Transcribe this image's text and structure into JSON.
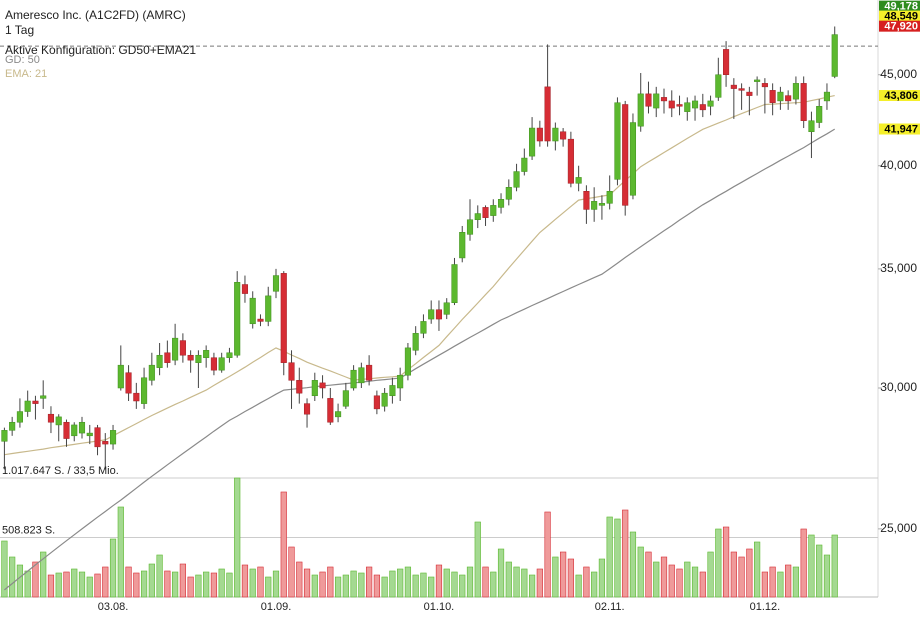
{
  "chart_data": {
    "type": "candlestick",
    "title": "Ameresco Inc. (A1C2FD) (AMRC)",
    "subtitle": "1 Tag",
    "config_label": "Aktive Konfiguration: GD50+EMA21",
    "log_scale": true,
    "up_color": "#5cb82f",
    "down_color": "#d62d35",
    "wick_color": "#444444",
    "ylim": [
      22890,
      49570
    ],
    "yticks": [
      {
        "value": 25000,
        "label": "25,000"
      },
      {
        "value": 30000,
        "label": "30,000"
      },
      {
        "value": 35000,
        "label": "35,000"
      },
      {
        "value": 40000,
        "label": "40,000"
      },
      {
        "value": 45000,
        "label": "45,000"
      }
    ],
    "reference_line": 46700,
    "price_markers": [
      {
        "value": 49178,
        "label": "49,178",
        "color": "#2e8b1e",
        "text_color": "#ffffff"
      },
      {
        "value": 48549,
        "label": "48,549",
        "color": "#f5ef2a",
        "text_color": "#000000"
      },
      {
        "value": 47920,
        "label": "47,920",
        "color": "#d62020",
        "text_color": "#ffffff"
      },
      {
        "value": 43806,
        "label": "43,806",
        "color": "#f5ef2a",
        "text_color": "#000000"
      },
      {
        "value": 41947,
        "label": "41,947",
        "color": "#f5ef2a",
        "text_color": "#000000"
      }
    ],
    "categories": [
      null,
      null,
      null,
      null,
      null,
      null,
      null,
      null,
      null,
      null,
      null,
      null,
      null,
      null,
      "03.08.",
      null,
      null,
      null,
      null,
      null,
      null,
      null,
      null,
      null,
      null,
      null,
      null,
      null,
      null,
      null,
      null,
      null,
      null,
      null,
      null,
      "01.09.",
      null,
      null,
      null,
      null,
      null,
      null,
      null,
      null,
      null,
      null,
      null,
      null,
      null,
      null,
      null,
      null,
      null,
      null,
      null,
      null,
      "01.10.",
      null,
      null,
      null,
      null,
      null,
      null,
      null,
      null,
      null,
      null,
      null,
      null,
      null,
      null,
      null,
      null,
      null,
      null,
      null,
      null,
      null,
      "02.11.",
      null,
      null,
      null,
      null,
      null,
      null,
      null,
      null,
      null,
      null,
      null,
      null,
      null,
      null,
      null,
      null,
      null,
      null,
      null,
      "01.12.",
      null,
      null,
      null,
      null,
      null,
      null,
      null,
      null,
      null
    ],
    "open": [
      28000,
      28400,
      28700,
      29100,
      29500,
      29600,
      29000,
      28600,
      28700,
      28200,
      28300,
      28200,
      28500,
      28000,
      27900,
      30000,
      30600,
      29800,
      29400,
      30300,
      30800,
      31400,
      31100,
      31900,
      31300,
      31000,
      31200,
      31200,
      30700,
      31200,
      31300,
      34300,
      32600,
      32800,
      32700,
      34000,
      34800,
      31000,
      30300,
      29400,
      29700,
      30200,
      29600,
      28900,
      29300,
      30000,
      30200,
      30900,
      29700,
      29300,
      29700,
      30000,
      30500,
      31500,
      32200,
      32800,
      33200,
      33000,
      33500,
      35500,
      36600,
      37300,
      37900,
      37500,
      37900,
      38300,
      38900,
      39700,
      40500,
      42000,
      44300,
      41300,
      41800,
      41400,
      39100,
      38700,
      37800,
      38000,
      38100,
      39300,
      43300,
      38500,
      42100,
      43900,
      43100,
      43700,
      43500,
      43300,
      42900,
      43100,
      43300,
      43200,
      43700,
      46500,
      44400,
      44200,
      44000,
      44600,
      44500,
      44100,
      43500,
      43800,
      43600,
      44500,
      41800,
      42300,
      43500,
      44900
    ],
    "high": [
      28500,
      28900,
      29600,
      29900,
      29700,
      30300,
      29300,
      29000,
      28800,
      28700,
      28900,
      28600,
      28600,
      28300,
      28600,
      31700,
      30900,
      30200,
      30800,
      31400,
      31800,
      31900,
      32600,
      32200,
      31500,
      31500,
      31700,
      31400,
      31400,
      31600,
      34900,
      34700,
      34000,
      33000,
      34200,
      35000,
      34900,
      31500,
      30800,
      29600,
      30600,
      30500,
      30000,
      29400,
      30200,
      30900,
      31000,
      31300,
      29900,
      30000,
      30400,
      30800,
      31800,
      32500,
      33000,
      33600,
      33600,
      33700,
      35500,
      37000,
      38300,
      38000,
      38000,
      38300,
      38600,
      39300,
      40100,
      40900,
      42600,
      42400,
      46800,
      42300,
      42000,
      41800,
      40000,
      39000,
      38900,
      38500,
      39500,
      43700,
      43500,
      42800,
      45100,
      44600,
      44300,
      44200,
      44100,
      43800,
      43700,
      43800,
      43900,
      43800,
      46000,
      47000,
      44800,
      44500,
      44300,
      44900,
      44800,
      44500,
      44300,
      44100,
      44900,
      44900,
      42900,
      43600,
      44500,
      47900
    ],
    "low": [
      27000,
      28200,
      28500,
      28900,
      28800,
      29200,
      28300,
      28000,
      27800,
      28000,
      28100,
      27900,
      27500,
      27000,
      27700,
      29900,
      29500,
      29200,
      29200,
      30100,
      30500,
      30800,
      30900,
      31000,
      30600,
      30000,
      30800,
      30500,
      30600,
      31000,
      31200,
      33500,
      32400,
      32500,
      32500,
      33700,
      30500,
      29200,
      29400,
      28500,
      29500,
      29600,
      28600,
      28700,
      29200,
      29900,
      30000,
      30100,
      29000,
      29100,
      29400,
      29500,
      30300,
      31300,
      32000,
      32600,
      32300,
      32800,
      33400,
      35300,
      36300,
      36900,
      37000,
      37200,
      37600,
      38000,
      38700,
      39500,
      40300,
      41000,
      41000,
      40800,
      41000,
      38900,
      38700,
      37100,
      37200,
      37300,
      37800,
      39000,
      37500,
      38300,
      41800,
      42800,
      42600,
      42800,
      42600,
      42700,
      42400,
      42400,
      42600,
      42700,
      43500,
      44300,
      42500,
      43000,
      42700,
      43800,
      42800,
      42700,
      43000,
      43000,
      43300,
      42000,
      40400,
      42000,
      43000,
      44800
    ],
    "close": [
      28400,
      28700,
      29100,
      29500,
      29400,
      29700,
      28700,
      28900,
      28100,
      28600,
      28700,
      28300,
      27800,
      27900,
      28400,
      30900,
      29800,
      29500,
      30400,
      30900,
      31300,
      31000,
      32000,
      31300,
      31100,
      31300,
      31500,
      30700,
      31200,
      31400,
      34400,
      33900,
      33700,
      32700,
      33800,
      34700,
      31000,
      30300,
      29800,
      29000,
      30300,
      30000,
      28700,
      29100,
      29900,
      30700,
      30800,
      30300,
      29200,
      29800,
      30100,
      30500,
      31600,
      32200,
      32700,
      33200,
      32800,
      33500,
      35200,
      36700,
      37300,
      37600,
      37400,
      38000,
      38300,
      38900,
      39700,
      40400,
      42000,
      41300,
      41300,
      42000,
      41400,
      39100,
      39400,
      37800,
      38200,
      38100,
      38700,
      43400,
      38000,
      42300,
      43900,
      43200,
      43900,
      43500,
      43100,
      43200,
      43400,
      43500,
      43000,
      43500,
      45000,
      45000,
      44200,
      44100,
      43800,
      44700,
      44300,
      43400,
      44000,
      43500,
      44500,
      42400,
      42400,
      43200,
      44000,
      47400
    ],
    "series": [
      {
        "name": "GD: 50",
        "color": "#8a8a8a",
        "values": [
          23100,
          23290,
          23480,
          23670,
          23860,
          24050,
          24240,
          24430,
          24620,
          24810,
          25000,
          25190,
          25380,
          25570,
          25760,
          25950,
          26150,
          26350,
          26560,
          26760,
          26960,
          27160,
          27360,
          27560,
          27760,
          27960,
          28160,
          28370,
          28570,
          28770,
          28930,
          29100,
          29260,
          29430,
          29590,
          29760,
          29920,
          29950,
          29980,
          30010,
          30050,
          30080,
          30110,
          30140,
          30170,
          30200,
          30230,
          30260,
          30300,
          30330,
          30360,
          30390,
          30570,
          30760,
          30940,
          31120,
          31300,
          31480,
          31670,
          31850,
          32030,
          32210,
          32390,
          32580,
          32760,
          32910,
          33070,
          33220,
          33380,
          33530,
          33680,
          33840,
          33990,
          34150,
          34300,
          34450,
          34610,
          34760,
          35010,
          35260,
          35520,
          35770,
          36020,
          36270,
          36520,
          36770,
          37020,
          37280,
          37530,
          37780,
          38030,
          38250,
          38480,
          38700,
          38930,
          39150,
          39380,
          39600,
          39830,
          40050,
          40280,
          40500,
          40730,
          40950,
          41200,
          41450,
          41690,
          41940
        ]
      },
      {
        "name": "EMA: 21",
        "color": "#c8b98c",
        "values": [
          27520,
          27560,
          27600,
          27640,
          27680,
          27720,
          27770,
          27810,
          27850,
          27890,
          27930,
          27970,
          28010,
          28050,
          28200,
          28350,
          28500,
          28650,
          28800,
          28950,
          29090,
          29230,
          29370,
          29500,
          29640,
          29780,
          29920,
          30100,
          30280,
          30450,
          30630,
          30820,
          31020,
          31210,
          31410,
          31600,
          31460,
          31310,
          31170,
          31020,
          30900,
          30780,
          30670,
          30550,
          30430,
          30310,
          30340,
          30360,
          30390,
          30420,
          30440,
          30470,
          30720,
          30960,
          31210,
          31450,
          31700,
          32060,
          32420,
          32780,
          33130,
          33490,
          33850,
          34210,
          34620,
          35040,
          35450,
          35860,
          36280,
          36690,
          37000,
          37320,
          37630,
          37950,
          38260,
          38330,
          38390,
          38460,
          38520,
          38880,
          39240,
          39590,
          39950,
          40200,
          40440,
          40690,
          40940,
          41190,
          41440,
          41680,
          41930,
          42100,
          42270,
          42440,
          42620,
          42790,
          42960,
          43130,
          43300,
          43320,
          43350,
          43370,
          43400,
          43420,
          43520,
          43610,
          43710,
          43800
        ]
      }
    ],
    "volume": {
      "up_color": "#a4d991",
      "down_color": "#ef9a9a",
      "ylim": [
        0,
        1017647
      ],
      "yticks": [
        {
          "value": 1017647,
          "label": "1.017.647 S. / 33,5 Mio."
        },
        {
          "value": 508823,
          "label": "508.823 S."
        }
      ],
      "values": [
        478900,
        342100,
        273700,
        222400,
        299300,
        384800,
        188100,
        205200,
        213800,
        239500,
        213800,
        171000,
        196700,
        256600,
        496000,
        769700,
        256600,
        205200,
        222400,
        282200,
        359200,
        222400,
        213800,
        282200,
        171000,
        188100,
        213800,
        205200,
        239500,
        205200,
        1017600,
        273700,
        239500,
        256600,
        171000,
        222400,
        898000,
        427600,
        299300,
        239500,
        188100,
        213800,
        256600,
        171000,
        188100,
        222400,
        205200,
        256600,
        188100,
        171000,
        222400,
        239500,
        256600,
        188100,
        205200,
        171000,
        273700,
        239500,
        213800,
        188100,
        256600,
        641400,
        256600,
        213800,
        410500,
        299300,
        256600,
        239500,
        188100,
        239500,
        726900,
        342100,
        384800,
        325000,
        188100,
        256600,
        213800,
        325000,
        684200,
        667100,
        744000,
        555900,
        427600,
        384800,
        299300,
        342100,
        273700,
        239500,
        299300,
        256600,
        213800,
        384800,
        581500,
        598600,
        384800,
        342100,
        410500,
        470400,
        213800,
        256600,
        213800,
        273700,
        256600,
        581500,
        530200,
        444700,
        359200,
        530200
      ]
    }
  }
}
